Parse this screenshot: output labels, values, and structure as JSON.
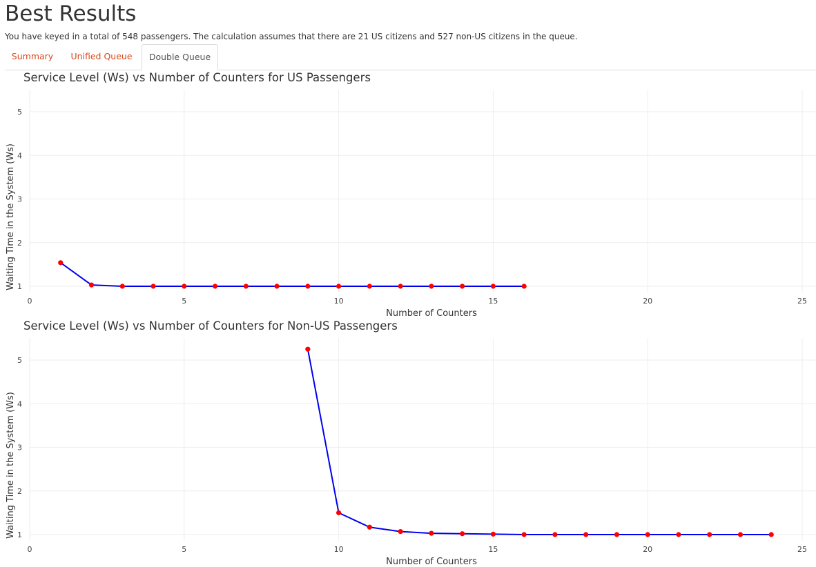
{
  "page": {
    "title": "Best Results",
    "summary": "You have keyed in a total of 548 passengers. The calculation assumes that there are 21 US citizens and 527 non-US citizens in the queue."
  },
  "tabs": [
    {
      "label": "Summary",
      "active": false
    },
    {
      "label": "Unified Queue",
      "active": false
    },
    {
      "label": "Double Queue",
      "active": true
    }
  ],
  "colors": {
    "accent": "#d9481c",
    "line": "#0000ee",
    "marker": "#ff0000",
    "grid": "#eeeeee"
  },
  "chart_data": [
    {
      "type": "line",
      "title": "Service Level (Ws) vs Number of Counters for US Passengers",
      "xlabel": "Number of Counters",
      "ylabel": "Waiting Time in the System (Ws)",
      "xlim": [
        0,
        25.4
      ],
      "ylim": [
        0.8,
        5.45
      ],
      "xticks": [
        0,
        5,
        10,
        15,
        20,
        25
      ],
      "yticks": [
        1,
        2,
        3,
        4,
        5
      ],
      "grid": true,
      "x": [
        1,
        2,
        3,
        4,
        5,
        6,
        7,
        8,
        9,
        10,
        11,
        12,
        13,
        14,
        15,
        16
      ],
      "y": [
        1.54,
        1.03,
        1.0,
        1.0,
        1.0,
        1.0,
        1.0,
        1.0,
        1.0,
        1.0,
        1.0,
        1.0,
        1.0,
        1.0,
        1.0,
        1.0
      ]
    },
    {
      "type": "line",
      "title": "Service Level (Ws) vs Number of Counters for Non-US Passengers",
      "xlabel": "Number of Counters",
      "ylabel": "Waiting Time in the System (Ws)",
      "xlim": [
        0,
        25.4
      ],
      "ylim": [
        0.8,
        5.45
      ],
      "xticks": [
        0,
        5,
        10,
        15,
        20,
        25
      ],
      "yticks": [
        1,
        2,
        3,
        4,
        5
      ],
      "grid": true,
      "x": [
        9,
        10,
        11,
        12,
        13,
        14,
        15,
        16,
        17,
        18,
        19,
        20,
        21,
        22,
        23,
        24
      ],
      "y": [
        5.25,
        1.5,
        1.17,
        1.07,
        1.03,
        1.02,
        1.01,
        1.0,
        1.0,
        1.0,
        1.0,
        1.0,
        1.0,
        1.0,
        1.0,
        1.0
      ]
    }
  ]
}
